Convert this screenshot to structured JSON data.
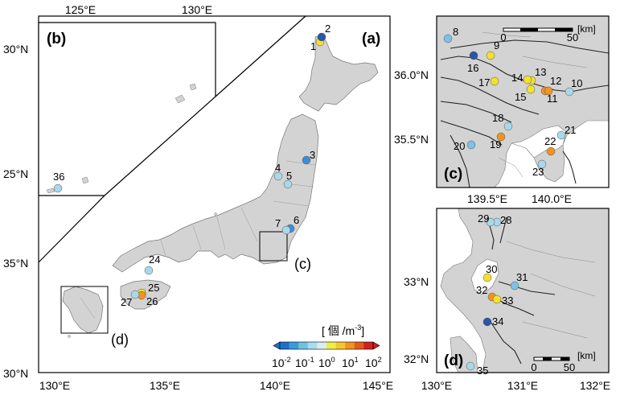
{
  "main_map": {
    "panel_label": "(a)",
    "lat_labels": [
      "35°N",
      "30°N"
    ],
    "lon_labels": [
      "130°E",
      "135°E",
      "140°E",
      "145°E"
    ],
    "left_lat_labels": [
      "30°N",
      "25°N"
    ]
  },
  "inset_b": {
    "panel_label": "(b)",
    "lon_labels": [
      "125°E",
      "130°E"
    ]
  },
  "inset_c": {
    "panel_label": "(c)",
    "lat_labels": [
      "36.0°N",
      "35.5°N"
    ],
    "lon_labels": [
      "139.5°E",
      "140.0°E"
    ],
    "scale_labels": [
      "0",
      "50",
      "[km]"
    ]
  },
  "inset_d": {
    "panel_label": "(d)",
    "lat_labels": [
      "33°N",
      "32°N"
    ],
    "lon_labels": [
      "130°E",
      "131°E",
      "132°E"
    ],
    "scale_labels": [
      "0",
      "50",
      "[km]"
    ]
  },
  "box_labels": {
    "c": "(c)",
    "d": "(d)"
  },
  "colorbar": {
    "title": "[ 個 /m",
    "title_sup": "-3",
    "title_end": "]",
    "ticks": [
      "10",
      "10",
      "10",
      "10",
      "10"
    ],
    "tick_exps": [
      "-2",
      "-1",
      "0",
      "1",
      "2"
    ],
    "colors": [
      "#1e6fc8",
      "#3b9ad9",
      "#74c0e4",
      "#a9dcee",
      "#d9eef2",
      "#f2ec4a",
      "#f5c531",
      "#f0941f",
      "#e35a1a",
      "#d22020"
    ]
  },
  "stations_main": [
    {
      "id": "1",
      "color": "#f2e12e"
    },
    {
      "id": "2",
      "color": "#2a56a8"
    },
    {
      "id": "3",
      "color": "#3d8fd3"
    },
    {
      "id": "4",
      "color": "#a9d8ea"
    },
    {
      "id": "5",
      "color": "#a9d8ea"
    },
    {
      "id": "6",
      "color": "#3d8fd3"
    },
    {
      "id": "7",
      "color": "#a9d8ea"
    },
    {
      "id": "24",
      "color": "#a9d8ea"
    },
    {
      "id": "25",
      "color": "#f2e12e"
    },
    {
      "id": "26",
      "color": "#f0941f"
    },
    {
      "id": "27",
      "color": "#a9d8ea"
    },
    {
      "id": "36",
      "color": "#a9d8ea"
    }
  ],
  "stations_c": [
    {
      "id": "8",
      "color": "#7cc2e6"
    },
    {
      "id": "9",
      "color": "#f2e12e"
    },
    {
      "id": "10",
      "color": "#a9d8ea"
    },
    {
      "id": "11",
      "color": "#f0941f"
    },
    {
      "id": "12",
      "color": "#f0941f"
    },
    {
      "id": "13",
      "color": "#f2e12e"
    },
    {
      "id": "14",
      "color": "#f2e12e"
    },
    {
      "id": "15",
      "color": "#f2e12e"
    },
    {
      "id": "16",
      "color": "#2a56a8"
    },
    {
      "id": "17",
      "color": "#f2e12e"
    },
    {
      "id": "18",
      "color": "#a9d8ea"
    },
    {
      "id": "19",
      "color": "#f0941f"
    },
    {
      "id": "20",
      "color": "#7cc2e6"
    },
    {
      "id": "21",
      "color": "#a9d8ea"
    },
    {
      "id": "22",
      "color": "#f0941f"
    },
    {
      "id": "23",
      "color": "#a9d8ea"
    }
  ],
  "stations_d": [
    {
      "id": "28",
      "color": "#a9d8ea"
    },
    {
      "id": "29",
      "color": "#a9d8ea"
    },
    {
      "id": "30",
      "color": "#f2e12e"
    },
    {
      "id": "31",
      "color": "#7cc2e6"
    },
    {
      "id": "32",
      "color": "#f0941f"
    },
    {
      "id": "33",
      "color": "#f2e12e"
    },
    {
      "id": "34",
      "color": "#2a56a8"
    },
    {
      "id": "35",
      "color": "#a9d8ea"
    }
  ]
}
